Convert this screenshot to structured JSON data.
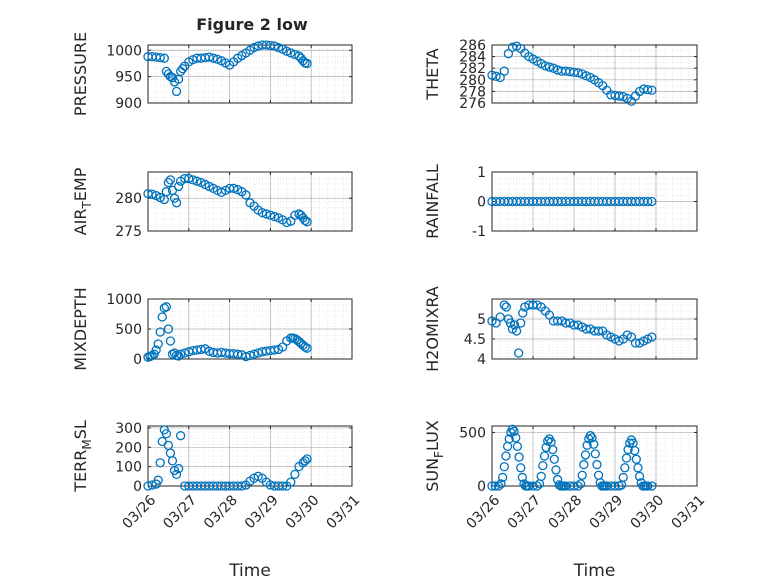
{
  "figure": {
    "title": "Figure 2 low"
  },
  "style": {
    "marker_color": "#0072BD",
    "axis_color": "#262626",
    "grid_color": "#b0b0b0"
  },
  "x_ticks": [
    "03/26",
    "03/27",
    "03/28",
    "03/29",
    "03/30",
    "03/31"
  ],
  "x_tick_values": [
    0,
    1,
    2,
    3,
    4,
    5
  ],
  "chart_data": [
    {
      "type": "scatter",
      "name": "pressure",
      "title": "Figure 2 low",
      "xlabel": "",
      "ylabel": "PRESSURE",
      "ylim": [
        900,
        1010
      ],
      "yticks": [
        "900",
        "950",
        "1000"
      ],
      "ytick_values": [
        900,
        950,
        1000
      ],
      "xlim": [
        0,
        5
      ],
      "grid": true,
      "minor_grid": true,
      "marker": "circle",
      "x": [
        0.0,
        0.1,
        0.2,
        0.3,
        0.4,
        0.45,
        0.5,
        0.55,
        0.6,
        0.65,
        0.7,
        0.75,
        0.8,
        0.85,
        0.9,
        1.0,
        1.1,
        1.2,
        1.3,
        1.4,
        1.5,
        1.6,
        1.7,
        1.8,
        1.9,
        2.0,
        2.1,
        2.2,
        2.3,
        2.4,
        2.5,
        2.6,
        2.7,
        2.8,
        2.9,
        3.0,
        3.1,
        3.2,
        3.3,
        3.4,
        3.5,
        3.6,
        3.7,
        3.75,
        3.8,
        3.85,
        3.9
      ],
      "y": [
        988,
        988,
        987,
        986,
        985,
        960,
        955,
        950,
        948,
        940,
        922,
        945,
        960,
        965,
        970,
        978,
        982,
        985,
        985,
        986,
        987,
        985,
        983,
        980,
        976,
        972,
        978,
        985,
        990,
        995,
        1000,
        1005,
        1008,
        1010,
        1010,
        1009,
        1008,
        1005,
        1002,
        998,
        995,
        992,
        989,
        985,
        980,
        976,
        975
      ]
    },
    {
      "type": "scatter",
      "name": "theta",
      "xlabel": "",
      "ylabel": "THETA",
      "ylim": [
        276,
        286
      ],
      "yticks": [
        "276",
        "278",
        "280",
        "282",
        "284",
        "286"
      ],
      "ytick_values": [
        276,
        278,
        280,
        282,
        284,
        286
      ],
      "xlim": [
        0,
        5
      ],
      "grid": true,
      "minor_grid": true,
      "marker": "circle",
      "x": [
        0.0,
        0.1,
        0.2,
        0.3,
        0.4,
        0.5,
        0.6,
        0.7,
        0.8,
        0.9,
        1.0,
        1.1,
        1.2,
        1.3,
        1.4,
        1.5,
        1.6,
        1.7,
        1.8,
        1.9,
        2.0,
        2.1,
        2.2,
        2.3,
        2.4,
        2.5,
        2.6,
        2.7,
        2.8,
        2.9,
        3.0,
        3.1,
        3.2,
        3.3,
        3.4,
        3.5,
        3.6,
        3.7,
        3.8,
        3.9
      ],
      "y": [
        280.8,
        280.6,
        280.4,
        281.5,
        284.5,
        285.6,
        285.8,
        285.4,
        284.6,
        284.0,
        283.6,
        283.2,
        282.8,
        282.4,
        282.2,
        282.0,
        281.7,
        281.5,
        281.5,
        281.4,
        281.3,
        281.2,
        281.0,
        280.7,
        280.4,
        280.0,
        279.5,
        279.0,
        278.2,
        277.4,
        277.3,
        277.2,
        277.1,
        276.8,
        276.3,
        277.2,
        278.0,
        278.4,
        278.3,
        278.2
      ]
    },
    {
      "type": "scatter",
      "name": "air_temp",
      "xlabel": "",
      "ylabel": "AIR_TEMP",
      "ylabel_sub": "T",
      "ylabel_parts": [
        "AIR",
        "EMP"
      ],
      "ylim": [
        275,
        284
      ],
      "yticks": [
        "275",
        "280"
      ],
      "ytick_values": [
        275,
        280
      ],
      "xlim": [
        0,
        5
      ],
      "grid": true,
      "minor_grid": true,
      "marker": "circle",
      "x": [
        0.0,
        0.1,
        0.2,
        0.3,
        0.4,
        0.45,
        0.5,
        0.55,
        0.6,
        0.65,
        0.7,
        0.75,
        0.8,
        0.9,
        1.0,
        1.1,
        1.2,
        1.3,
        1.4,
        1.5,
        1.6,
        1.7,
        1.8,
        1.9,
        2.0,
        2.1,
        2.2,
        2.3,
        2.4,
        2.5,
        2.6,
        2.7,
        2.8,
        2.9,
        3.0,
        3.1,
        3.2,
        3.3,
        3.4,
        3.5,
        3.6,
        3.7,
        3.75,
        3.8,
        3.85,
        3.9
      ],
      "y": [
        280.7,
        280.6,
        280.4,
        280.1,
        279.8,
        281.0,
        282.4,
        282.8,
        281.2,
        280.0,
        279.3,
        281.8,
        282.6,
        283.0,
        283.0,
        282.8,
        282.6,
        282.4,
        282.1,
        281.8,
        281.5,
        281.2,
        280.9,
        281.2,
        281.5,
        281.5,
        281.3,
        281.0,
        280.5,
        279.3,
        278.8,
        278.2,
        277.8,
        277.6,
        277.4,
        277.2,
        277.0,
        276.7,
        276.3,
        276.5,
        277.4,
        277.6,
        277.4,
        277.0,
        276.6,
        276.4
      ]
    },
    {
      "type": "scatter",
      "name": "rainfall",
      "xlabel": "",
      "ylabel": "RAINFALL",
      "ylim": [
        -1,
        1
      ],
      "yticks": [
        "-1",
        "0",
        "1"
      ],
      "ytick_values": [
        -1,
        0,
        1
      ],
      "xlim": [
        0,
        5
      ],
      "grid": true,
      "minor_grid": true,
      "marker": "circle",
      "x": [
        0.0,
        0.1,
        0.2,
        0.3,
        0.4,
        0.5,
        0.6,
        0.7,
        0.8,
        0.9,
        1.0,
        1.1,
        1.2,
        1.3,
        1.4,
        1.5,
        1.6,
        1.7,
        1.8,
        1.9,
        2.0,
        2.1,
        2.2,
        2.3,
        2.4,
        2.5,
        2.6,
        2.7,
        2.8,
        2.9,
        3.0,
        3.1,
        3.2,
        3.3,
        3.4,
        3.5,
        3.6,
        3.7,
        3.8,
        3.9
      ],
      "y": [
        0,
        0,
        0,
        0,
        0,
        0,
        0,
        0,
        0,
        0,
        0,
        0,
        0,
        0,
        0,
        0,
        0,
        0,
        0,
        0,
        0,
        0,
        0,
        0,
        0,
        0,
        0,
        0,
        0,
        0,
        0,
        0,
        0,
        0,
        0,
        0,
        0,
        0,
        0,
        0
      ]
    },
    {
      "type": "scatter",
      "name": "mixdepth",
      "xlabel": "",
      "ylabel": "MIXDEPTH",
      "ylim": [
        0,
        1000
      ],
      "yticks": [
        "0",
        "500",
        "1000"
      ],
      "ytick_values": [
        0,
        500,
        1000
      ],
      "xlim": [
        0,
        5
      ],
      "grid": true,
      "minor_grid": true,
      "marker": "circle",
      "x": [
        0.0,
        0.05,
        0.1,
        0.15,
        0.2,
        0.25,
        0.3,
        0.35,
        0.4,
        0.45,
        0.5,
        0.55,
        0.6,
        0.65,
        0.7,
        0.75,
        0.8,
        0.9,
        1.0,
        1.1,
        1.2,
        1.3,
        1.4,
        1.5,
        1.6,
        1.7,
        1.8,
        1.9,
        2.0,
        2.1,
        2.2,
        2.3,
        2.4,
        2.5,
        2.6,
        2.7,
        2.8,
        2.9,
        3.0,
        3.1,
        3.2,
        3.3,
        3.4,
        3.5,
        3.55,
        3.6,
        3.65,
        3.7,
        3.75,
        3.8,
        3.85,
        3.9
      ],
      "y": [
        30,
        40,
        60,
        80,
        150,
        250,
        450,
        700,
        850,
        870,
        500,
        300,
        80,
        100,
        60,
        50,
        80,
        100,
        120,
        140,
        150,
        160,
        170,
        130,
        110,
        100,
        110,
        100,
        90,
        90,
        80,
        70,
        40,
        60,
        80,
        100,
        120,
        130,
        140,
        150,
        160,
        200,
        300,
        350,
        350,
        340,
        320,
        290,
        260,
        230,
        200,
        180
      ]
    },
    {
      "type": "scatter",
      "name": "h2omixra",
      "xlabel": "",
      "ylabel": "H2OMIXRA",
      "ylim": [
        4,
        5.5
      ],
      "yticks": [
        "4",
        "4.5",
        "5"
      ],
      "ytick_values": [
        4,
        4.5,
        5
      ],
      "xlim": [
        0,
        5
      ],
      "grid": true,
      "minor_grid": true,
      "marker": "circle",
      "x": [
        0.0,
        0.1,
        0.2,
        0.3,
        0.35,
        0.4,
        0.45,
        0.5,
        0.55,
        0.6,
        0.65,
        0.7,
        0.75,
        0.8,
        0.9,
        1.0,
        1.1,
        1.2,
        1.3,
        1.4,
        1.5,
        1.6,
        1.7,
        1.8,
        1.9,
        2.0,
        2.1,
        2.2,
        2.3,
        2.4,
        2.5,
        2.6,
        2.7,
        2.8,
        2.9,
        3.0,
        3.1,
        3.2,
        3.3,
        3.4,
        3.5,
        3.6,
        3.7,
        3.8,
        3.9
      ],
      "y": [
        4.95,
        4.9,
        5.05,
        5.35,
        5.3,
        5.0,
        4.9,
        4.75,
        4.85,
        4.7,
        4.15,
        4.9,
        5.15,
        5.3,
        5.35,
        5.35,
        5.35,
        5.3,
        5.2,
        5.1,
        4.95,
        4.95,
        4.95,
        4.9,
        4.9,
        4.85,
        4.85,
        4.8,
        4.75,
        4.75,
        4.7,
        4.7,
        4.7,
        4.6,
        4.55,
        4.5,
        4.45,
        4.5,
        4.6,
        4.55,
        4.4,
        4.4,
        4.45,
        4.5,
        4.55
      ]
    },
    {
      "type": "scatter",
      "name": "terr_msl",
      "xlabel": "Time",
      "ylabel": "TERR_MSL",
      "ylabel_sub": "M",
      "ylabel_parts": [
        "TERR",
        "SL"
      ],
      "ylim": [
        0,
        310
      ],
      "yticks": [
        "0",
        "100",
        "200",
        "300"
      ],
      "ytick_values": [
        0,
        100,
        200,
        300
      ],
      "xlim": [
        0,
        5
      ],
      "grid": true,
      "minor_grid": true,
      "marker": "circle",
      "x": [
        0.0,
        0.1,
        0.2,
        0.25,
        0.3,
        0.35,
        0.4,
        0.45,
        0.5,
        0.55,
        0.6,
        0.65,
        0.7,
        0.75,
        0.8,
        0.9,
        1.0,
        1.1,
        1.2,
        1.3,
        1.4,
        1.5,
        1.6,
        1.7,
        1.8,
        1.9,
        2.0,
        2.1,
        2.2,
        2.3,
        2.4,
        2.5,
        2.6,
        2.7,
        2.8,
        2.9,
        3.0,
        3.1,
        3.2,
        3.3,
        3.4,
        3.5,
        3.6,
        3.7,
        3.8,
        3.85,
        3.9
      ],
      "y": [
        0,
        5,
        10,
        30,
        120,
        230,
        290,
        270,
        210,
        170,
        130,
        80,
        60,
        90,
        260,
        0,
        0,
        0,
        0,
        0,
        0,
        0,
        0,
        0,
        0,
        0,
        0,
        0,
        0,
        0,
        5,
        25,
        40,
        50,
        40,
        20,
        5,
        0,
        0,
        0,
        0,
        20,
        60,
        100,
        120,
        130,
        140
      ]
    },
    {
      "type": "scatter",
      "name": "sun_flux",
      "xlabel": "Time",
      "ylabel": "SUN_FLUX",
      "ylabel_sub": "F",
      "ylabel_parts": [
        "SUN",
        "LUX"
      ],
      "ylim": [
        0,
        560
      ],
      "yticks": [
        "0",
        "500"
      ],
      "ytick_values": [
        0,
        500
      ],
      "xlim": [
        0,
        5
      ],
      "grid": true,
      "minor_grid": true,
      "marker": "circle",
      "x": [
        0.0,
        0.08,
        0.16,
        0.22,
        0.26,
        0.3,
        0.34,
        0.38,
        0.42,
        0.46,
        0.5,
        0.54,
        0.58,
        0.62,
        0.66,
        0.7,
        0.74,
        0.78,
        0.82,
        0.86,
        0.9,
        1.0,
        1.1,
        1.16,
        1.2,
        1.24,
        1.28,
        1.32,
        1.36,
        1.4,
        1.44,
        1.48,
        1.52,
        1.56,
        1.6,
        1.64,
        1.68,
        1.72,
        1.76,
        1.8,
        1.9,
        2.0,
        2.1,
        2.16,
        2.2,
        2.24,
        2.28,
        2.32,
        2.36,
        2.4,
        2.44,
        2.48,
        2.52,
        2.56,
        2.6,
        2.64,
        2.68,
        2.72,
        2.76,
        2.8,
        2.9,
        3.0,
        3.1,
        3.16,
        3.2,
        3.24,
        3.28,
        3.32,
        3.36,
        3.4,
        3.44,
        3.48,
        3.52,
        3.56,
        3.6,
        3.64,
        3.68,
        3.72,
        3.76,
        3.8,
        3.9
      ],
      "y": [
        0,
        0,
        0,
        20,
        80,
        180,
        280,
        370,
        440,
        500,
        530,
        510,
        450,
        370,
        270,
        170,
        80,
        20,
        0,
        0,
        0,
        0,
        0,
        20,
        90,
        190,
        280,
        360,
        420,
        440,
        410,
        340,
        250,
        150,
        60,
        10,
        0,
        0,
        0,
        0,
        0,
        0,
        0,
        20,
        100,
        200,
        290,
        380,
        440,
        470,
        450,
        390,
        300,
        200,
        100,
        30,
        0,
        0,
        0,
        0,
        0,
        0,
        0,
        10,
        80,
        170,
        260,
        340,
        400,
        430,
        400,
        330,
        250,
        170,
        90,
        30,
        0,
        0,
        0,
        0,
        0
      ]
    }
  ]
}
